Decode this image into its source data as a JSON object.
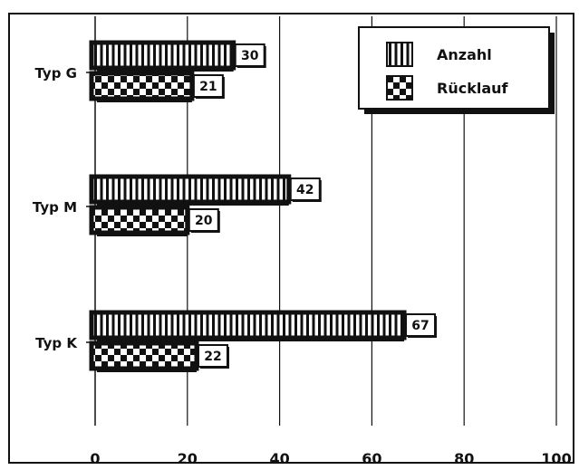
{
  "chart_data": {
    "type": "bar",
    "orientation": "horizontal",
    "categories": [
      "Typ G",
      "Typ M",
      "Typ K"
    ],
    "series": [
      {
        "name": "Anzahl",
        "values": [
          30,
          42,
          67
        ],
        "pattern": "vertical-stripes"
      },
      {
        "name": "Rücklauf",
        "values": [
          21,
          20,
          22
        ],
        "pattern": "checkerboard"
      }
    ],
    "xlim": [
      0,
      100
    ],
    "xticks": [
      0,
      20,
      40,
      60,
      80,
      100
    ],
    "grid": "vertical",
    "legend_position": "top-right",
    "data_labels": true,
    "title": "",
    "xlabel": "",
    "ylabel": ""
  },
  "colors": {
    "ink": "#111111",
    "background": "#ffffff"
  }
}
